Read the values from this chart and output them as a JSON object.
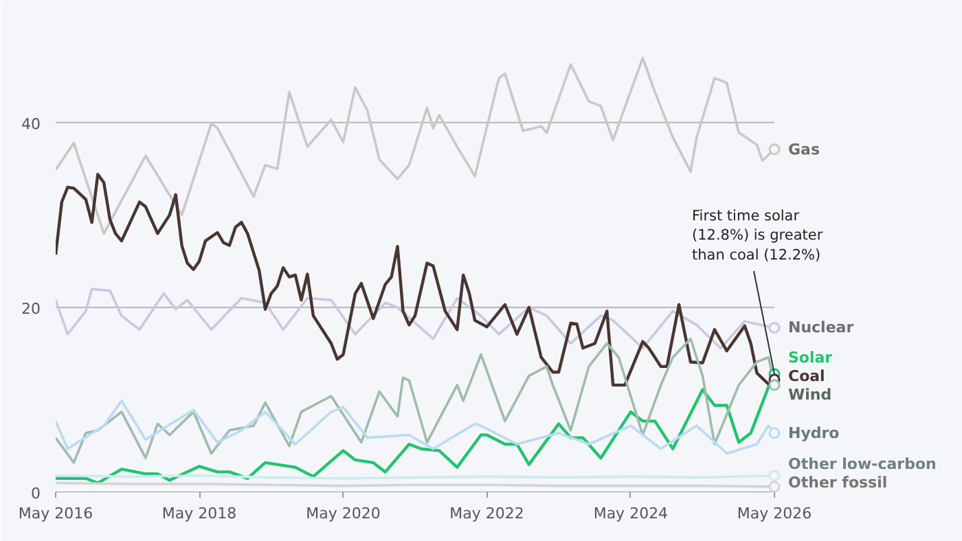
{
  "chart_data": {
    "type": "line",
    "xlim": [
      "2016-05",
      "2026-05"
    ],
    "ylim": [
      0,
      52
    ],
    "yticks": [
      0,
      20,
      40
    ],
    "xticks": [
      {
        "value": "2016-05",
        "label": "May 2016"
      },
      {
        "value": "2018-05",
        "label": "May 2018"
      },
      {
        "value": "2020-05",
        "label": "May 2020"
      },
      {
        "value": "2022-05",
        "label": "May 2022"
      },
      {
        "value": "2024-05",
        "label": "May 2024"
      },
      {
        "value": "2026-05",
        "label": "May 2026"
      }
    ],
    "grid": "y",
    "annotations": [
      {
        "text": "First time solar (12.8%) is greater than coal (12.2%)",
        "x": "2026-05",
        "y": 12.8
      }
    ],
    "series": [
      {
        "name": "Gas",
        "color": "#c8c8c8",
        "x": [
          "2016-05",
          "2016-08",
          "2017-01",
          "2017-08",
          "2018-02",
          "2018-07",
          "2018-08",
          "2019-02",
          "2019-04",
          "2019-06",
          "2019-08",
          "2019-11",
          "2020-03",
          "2020-05",
          "2020-07",
          "2020-09",
          "2020-11",
          "2021-02",
          "2021-04",
          "2021-07",
          "2021-08",
          "2021-09",
          "2021-12",
          "2022-03",
          "2022-07",
          "2022-08",
          "2022-11",
          "2023-02",
          "2023-03",
          "2023-07",
          "2023-10",
          "2023-12",
          "2024-02",
          "2024-07",
          "2024-09",
          "2024-12",
          "2025-03",
          "2025-04",
          "2025-07",
          "2025-09",
          "2025-11",
          "2026-02",
          "2026-03",
          "2026-05"
        ],
        "values": [
          34.9,
          37.8,
          28,
          36.4,
          30,
          39.9,
          39.4,
          32,
          35.4,
          35,
          43.3,
          37.4,
          40.3,
          37.9,
          43.8,
          41.3,
          36,
          33.9,
          35.4,
          41.6,
          39.4,
          40.8,
          37.4,
          34.2,
          44.8,
          45.3,
          39.1,
          39.6,
          38.9,
          46.3,
          42.3,
          41.8,
          38.1,
          47,
          43.3,
          38.4,
          34.7,
          38.4,
          44.8,
          44.3,
          38.9,
          37.6,
          35.9,
          37.1
        ]
      },
      {
        "name": "Nuclear",
        "color": "#c9c9df",
        "x": [
          "2016-05",
          "2016-07",
          "2016-10",
          "2016-11",
          "2017-02",
          "2017-04",
          "2017-07",
          "2017-11",
          "2018-01",
          "2018-03",
          "2018-07",
          "2018-12",
          "2019-04",
          "2019-07",
          "2019-11",
          "2020-03",
          "2020-07",
          "2020-12",
          "2021-02",
          "2021-08",
          "2021-12",
          "2022-04",
          "2022-07",
          "2022-12",
          "2023-03",
          "2023-07",
          "2023-12",
          "2024-02",
          "2024-07",
          "2024-12",
          "2025-04",
          "2025-08",
          "2025-12",
          "2026-05"
        ],
        "values": [
          20.8,
          17.1,
          19.6,
          22,
          21.8,
          19.1,
          17.6,
          21.5,
          19.8,
          20.8,
          17.6,
          21,
          20.5,
          17.6,
          21,
          20.8,
          17.1,
          20.5,
          20,
          16.6,
          21,
          19.1,
          17.1,
          20,
          19.1,
          16.1,
          19.1,
          18.6,
          15.6,
          19.6,
          18.1,
          15.6,
          18.5,
          17.8
        ]
      },
      {
        "name": "Solar",
        "color": "#22c46e",
        "x": [
          "2016-05",
          "2016-10",
          "2016-12",
          "2017-04",
          "2017-08",
          "2017-10",
          "2017-12",
          "2018-05",
          "2018-08",
          "2018-10",
          "2019-01",
          "2019-04",
          "2019-06",
          "2019-09",
          "2019-12",
          "2020-05",
          "2020-07",
          "2020-10",
          "2020-12",
          "2021-04",
          "2021-06",
          "2021-09",
          "2021-12",
          "2022-04",
          "2022-05",
          "2022-08",
          "2022-10",
          "2022-12",
          "2023-05",
          "2023-07",
          "2023-09",
          "2023-12",
          "2024-05",
          "2024-07",
          "2024-09",
          "2024-12",
          "2025-05",
          "2025-07",
          "2025-09",
          "2025-11",
          "2026-01",
          "2026-04",
          "2026-05"
        ],
        "values": [
          1.5,
          1.5,
          1,
          2.5,
          2,
          2,
          1.3,
          2.8,
          2.2,
          2.2,
          1.5,
          3.2,
          3,
          2.7,
          1.7,
          4.5,
          3.5,
          3.2,
          2.2,
          5.2,
          4.7,
          4.5,
          2.7,
          6.2,
          6.2,
          5.2,
          5.2,
          3,
          7.4,
          5.9,
          5.9,
          3.7,
          8.7,
          7.7,
          7.7,
          4.7,
          11.1,
          9.4,
          9.4,
          5.4,
          6.4,
          11.4,
          12.8
        ]
      },
      {
        "name": "Coal",
        "color": "#4a3530",
        "x": [
          "2016-05",
          "2016-06",
          "2016-07",
          "2016-08",
          "2016-10",
          "2016-11",
          "2016-12",
          "2017-01",
          "2017-02",
          "2017-03",
          "2017-04",
          "2017-07",
          "2017-08",
          "2017-10",
          "2017-12",
          "2018-01",
          "2018-02",
          "2018-03",
          "2018-04",
          "2018-05",
          "2018-06",
          "2018-08",
          "2018-09",
          "2018-10",
          "2018-11",
          "2018-12",
          "2019-01",
          "2019-03",
          "2019-04",
          "2019-05",
          "2019-06",
          "2019-07",
          "2019-08",
          "2019-09",
          "2019-10",
          "2019-11",
          "2019-12",
          "2020-03",
          "2020-04",
          "2020-05",
          "2020-07",
          "2020-08",
          "2020-10",
          "2020-12",
          "2021-01",
          "2021-02",
          "2021-03",
          "2021-04",
          "2021-05",
          "2021-07",
          "2021-08",
          "2021-10",
          "2021-12",
          "2022-01",
          "2022-02",
          "2022-03",
          "2022-05",
          "2022-08",
          "2022-10",
          "2022-12",
          "2023-02",
          "2023-04",
          "2023-05",
          "2023-07",
          "2023-08",
          "2023-09",
          "2023-11",
          "2024-01",
          "2024-02",
          "2024-04",
          "2024-07",
          "2024-08",
          "2024-10",
          "2024-11",
          "2025-01",
          "2025-03",
          "2025-05",
          "2025-07",
          "2025-09",
          "2025-12",
          "2026-01",
          "2026-02",
          "2026-04",
          "2026-05"
        ],
        "values": [
          25.7,
          31.4,
          33,
          32.9,
          31.7,
          29.2,
          34.4,
          33.5,
          29.5,
          28,
          27.2,
          31.4,
          30.9,
          28,
          30,
          32.2,
          26.7,
          24.8,
          24.1,
          25,
          27.2,
          28.1,
          27,
          26.7,
          28.7,
          29.2,
          28,
          24,
          19.8,
          21.5,
          22.3,
          24.3,
          23.3,
          23.5,
          20.8,
          23.6,
          19.1,
          16.1,
          14.4,
          14.9,
          21.5,
          22.6,
          18.8,
          22.5,
          23.3,
          26.6,
          19.6,
          18.1,
          19.1,
          24.8,
          24.5,
          19.6,
          17.6,
          23.5,
          21.5,
          18.6,
          17.9,
          20.3,
          17.1,
          20,
          14.6,
          13,
          13,
          18.3,
          18.2,
          15.6,
          16.1,
          19.6,
          11.6,
          11.6,
          16.3,
          15.6,
          13.6,
          13.6,
          20.3,
          14.1,
          14,
          17.6,
          15.3,
          18,
          16.1,
          12.9,
          11.7,
          12.2
        ]
      },
      {
        "name": "Wind",
        "color": "#9fbcad",
        "x": [
          "2016-05",
          "2016-08",
          "2016-10",
          "2016-12",
          "2017-04",
          "2017-08",
          "2017-10",
          "2017-12",
          "2018-04",
          "2018-07",
          "2018-10",
          "2019-02",
          "2019-04",
          "2019-08",
          "2019-10",
          "2020-03",
          "2020-08",
          "2020-11",
          "2021-02",
          "2021-03",
          "2021-04",
          "2021-07",
          "2021-12",
          "2022-01",
          "2022-04",
          "2022-08",
          "2022-12",
          "2023-03",
          "2023-04",
          "2023-07",
          "2023-10",
          "2024-01",
          "2024-03",
          "2024-07",
          "2024-10",
          "2024-12",
          "2025-03",
          "2025-05",
          "2025-07",
          "2025-11",
          "2026-02",
          "2026-04",
          "2026-05"
        ],
        "values": [
          5.9,
          3.2,
          6.4,
          6.7,
          8.7,
          3.7,
          7.4,
          6.2,
          8.7,
          4.2,
          6.7,
          7.2,
          9.7,
          5,
          8.7,
          10.4,
          5.4,
          10.9,
          8.2,
          12.4,
          12.1,
          5.4,
          11.6,
          9.9,
          14.9,
          7.7,
          12.6,
          13.6,
          11.6,
          6.7,
          13.6,
          16.1,
          14.6,
          6.2,
          11.6,
          14.6,
          16.6,
          12.6,
          5.2,
          11.6,
          14.1,
          14.6,
          11.6
        ]
      },
      {
        "name": "Hydro",
        "color": "#b9dcef",
        "x": [
          "2016-05",
          "2016-07",
          "2017-01",
          "2017-04",
          "2017-08",
          "2018-04",
          "2018-08",
          "2018-12",
          "2019-04",
          "2019-09",
          "2020-03",
          "2020-05",
          "2020-09",
          "2021-04",
          "2021-08",
          "2022-03",
          "2022-04",
          "2022-10",
          "2023-05",
          "2023-10",
          "2024-05",
          "2024-10",
          "2025-04",
          "2025-09",
          "2026-02",
          "2026-04",
          "2026-05"
        ],
        "values": [
          7.7,
          4.7,
          7.2,
          9.9,
          5.7,
          8.9,
          5.4,
          6.7,
          8.7,
          5.2,
          8.7,
          9.2,
          5.9,
          6.2,
          4.7,
          7.4,
          7.2,
          5.2,
          6.4,
          5.2,
          7.2,
          4.7,
          7.2,
          4.2,
          5.2,
          7.2,
          6.4
        ]
      },
      {
        "name": "Other low-carbon",
        "color": "#cdebee",
        "x": [
          "2016-05",
          "2017-05",
          "2018-05",
          "2019-05",
          "2020-05",
          "2021-05",
          "2022-05",
          "2023-05",
          "2024-05",
          "2025-05",
          "2026-05"
        ],
        "values": [
          1.8,
          1.7,
          1.8,
          1.6,
          1.5,
          1.6,
          1.7,
          1.6,
          1.7,
          1.6,
          1.8
        ]
      },
      {
        "name": "Other fossil",
        "color": "#d5d5d5",
        "x": [
          "2016-05",
          "2017-05",
          "2018-05",
          "2019-05",
          "2020-05",
          "2021-05",
          "2022-05",
          "2023-05",
          "2024-05",
          "2025-05",
          "2026-05"
        ],
        "values": [
          1.0,
          0.9,
          0.9,
          0.8,
          0.7,
          0.8,
          0.8,
          0.7,
          0.7,
          0.7,
          0.6
        ]
      }
    ]
  }
}
